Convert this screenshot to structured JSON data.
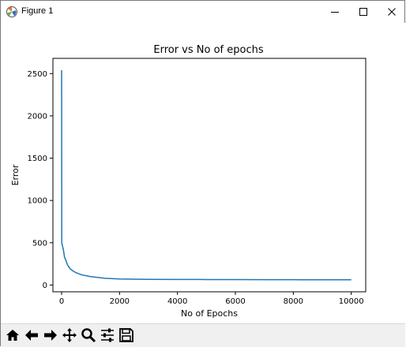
{
  "window": {
    "title": "Figure 1",
    "minimize_icon": "minimize-icon",
    "maximize_icon": "maximize-icon",
    "close_icon": "close-icon"
  },
  "toolbar": {
    "tools": [
      {
        "name": "home-icon"
      },
      {
        "name": "back-arrow-icon"
      },
      {
        "name": "forward-arrow-icon"
      },
      {
        "name": "pan-icon"
      },
      {
        "name": "zoom-icon"
      },
      {
        "name": "configure-subplots-icon"
      },
      {
        "name": "save-icon"
      }
    ]
  },
  "chart_data": {
    "type": "line",
    "title": "Error vs No of epochs",
    "xlabel": "No of Epochs",
    "ylabel": "Error",
    "xlim": [
      -300,
      10500
    ],
    "ylim": [
      -80,
      2680
    ],
    "xticks": [
      0,
      2000,
      4000,
      6000,
      8000,
      10000
    ],
    "yticks": [
      0,
      500,
      1000,
      1500,
      2000,
      2500
    ],
    "grid": false,
    "series_color": "#1f77b4",
    "series": [
      {
        "x": [
          0,
          5,
          30,
          60,
          100,
          150,
          200,
          300,
          400,
          500,
          700,
          1000,
          1500,
          2000,
          2500,
          3000,
          4000,
          5000,
          6000,
          7000,
          8000,
          9000,
          10000
        ],
        "y": [
          2540,
          500,
          460,
          420,
          330,
          290,
          240,
          190,
          165,
          145,
          120,
          100,
          80,
          72,
          69,
          67,
          66,
          65,
          64,
          63,
          63,
          62,
          62
        ]
      }
    ]
  }
}
